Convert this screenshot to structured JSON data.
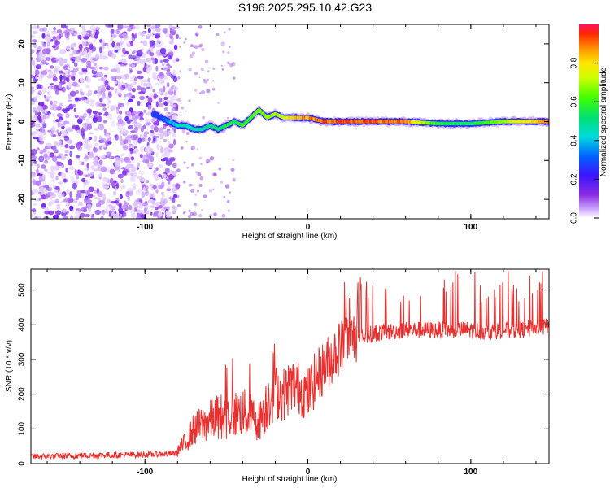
{
  "title": "S196.2025.295.10.42.G23",
  "chart_data": [
    {
      "type": "heatmap",
      "xlabel": "Height of straight line (km)",
      "ylabel": "Frequency (Hz)",
      "xlim": [
        -170,
        148
      ],
      "ylim": [
        -25,
        25
      ],
      "xticks": [
        -100,
        0,
        100
      ],
      "yticks": [
        -20,
        -10,
        0,
        10,
        20
      ],
      "colorbar": {
        "label": "Normalized spectral amplitude",
        "range": [
          0,
          1
        ],
        "ticks": [
          0.0,
          0.2,
          0.4,
          0.6,
          0.8
        ]
      },
      "noise_region_x": [
        -170,
        -80
      ],
      "ridge": {
        "x": [
          -95,
          -90,
          -85,
          -80,
          -75,
          -70,
          -65,
          -60,
          -55,
          -50,
          -45,
          -40,
          -35,
          -30,
          -25,
          -20,
          -15,
          -10,
          -5,
          0,
          10,
          30,
          60,
          80,
          100,
          120,
          148
        ],
        "frequency": [
          2,
          1,
          0,
          -1,
          -1,
          -2,
          -2,
          -1,
          -2,
          -1,
          0,
          -1,
          1,
          3,
          1,
          2,
          1,
          1,
          1,
          1,
          0,
          0,
          0,
          -0.5,
          -0.5,
          0,
          0
        ],
        "amplitude": [
          0.3,
          0.3,
          0.4,
          0.45,
          0.5,
          0.5,
          0.5,
          0.55,
          0.55,
          0.6,
          0.6,
          0.65,
          0.65,
          0.7,
          0.7,
          0.75,
          0.8,
          0.85,
          0.9,
          0.95,
          1.0,
          1.0,
          0.95,
          0.6,
          0.55,
          0.75,
          0.95
        ]
      }
    },
    {
      "type": "line",
      "xlabel": "Height of straight line (km)",
      "ylabel": "SNR (10 * v/v)",
      "xlim": [
        -170,
        148
      ],
      "ylim": [
        0,
        560
      ],
      "xticks": [
        -100,
        0,
        100
      ],
      "yticks": [
        0,
        100,
        200,
        300,
        400,
        500
      ],
      "color": "#e8302e",
      "series": [
        {
          "name": "SNR",
          "x": [
            -170,
            -150,
            -130,
            -110,
            -90,
            -80,
            -75,
            -70,
            -65,
            -60,
            -55,
            -50,
            -45,
            -40,
            -35,
            -30,
            -25,
            -20,
            -15,
            -10,
            -5,
            0,
            5,
            10,
            15,
            20,
            25,
            30,
            40,
            50,
            60,
            70,
            80,
            90,
            100,
            110,
            120,
            130,
            140,
            148
          ],
          "y": [
            20,
            22,
            24,
            25,
            27,
            30,
            50,
            80,
            90,
            100,
            110,
            110,
            115,
            120,
            110,
            100,
            140,
            200,
            190,
            220,
            210,
            190,
            240,
            270,
            300,
            330,
            350,
            360,
            375,
            380,
            385,
            385,
            385,
            385,
            385,
            380,
            385,
            385,
            390,
            395
          ]
        }
      ]
    }
  ]
}
